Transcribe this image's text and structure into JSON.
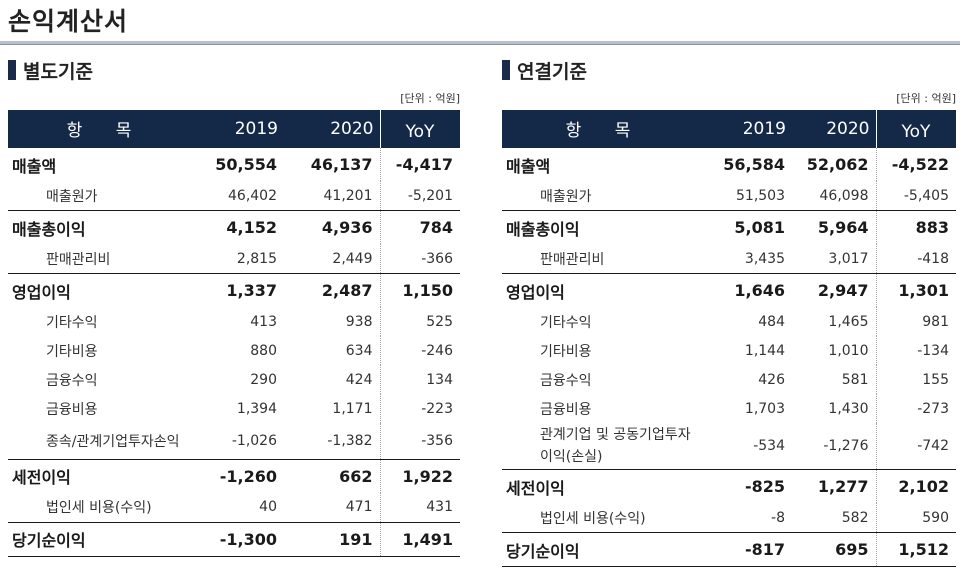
{
  "page": {
    "title": "손익계산서"
  },
  "headers": {
    "item": "항 목",
    "y2019": "2019",
    "y2020": "2020",
    "yoy": "YoY"
  },
  "unit": "[단위 : 억원]",
  "separate": {
    "title": "별도기준",
    "rows": [
      {
        "label": "매출액",
        "v2019": "50,554",
        "v2020": "46,137",
        "yoy": "-4,417"
      },
      {
        "label": "매출원가",
        "v2019": "46,402",
        "v2020": "41,201",
        "yoy": "-5,201"
      },
      {
        "label": "매출총이익",
        "v2019": "4,152",
        "v2020": "4,936",
        "yoy": "784"
      },
      {
        "label": "판매관리비",
        "v2019": "2,815",
        "v2020": "2,449",
        "yoy": "-366"
      },
      {
        "label": "영업이익",
        "v2019": "1,337",
        "v2020": "2,487",
        "yoy": "1,150"
      },
      {
        "label": "기타수익",
        "v2019": "413",
        "v2020": "938",
        "yoy": "525"
      },
      {
        "label": "기타비용",
        "v2019": "880",
        "v2020": "634",
        "yoy": "-246"
      },
      {
        "label": "금융수익",
        "v2019": "290",
        "v2020": "424",
        "yoy": "134"
      },
      {
        "label": "금융비용",
        "v2019": "1,394",
        "v2020": "1,171",
        "yoy": "-223"
      },
      {
        "label": "종속/관계기업투자손익",
        "v2019": "-1,026",
        "v2020": "-1,382",
        "yoy": "-356"
      },
      {
        "label": "세전이익",
        "v2019": "-1,260",
        "v2020": "662",
        "yoy": "1,922"
      },
      {
        "label": "법인세 비용(수익)",
        "v2019": "40",
        "v2020": "471",
        "yoy": "431"
      },
      {
        "label": "당기순이익",
        "v2019": "-1,300",
        "v2020": "191",
        "yoy": "1,491"
      }
    ]
  },
  "consolidated": {
    "title": "연결기준",
    "rows": [
      {
        "label": "매출액",
        "v2019": "56,584",
        "v2020": "52,062",
        "yoy": "-4,522"
      },
      {
        "label": "매출원가",
        "v2019": "51,503",
        "v2020": "46,098",
        "yoy": "-5,405"
      },
      {
        "label": "매출총이익",
        "v2019": "5,081",
        "v2020": "5,964",
        "yoy": "883"
      },
      {
        "label": "판매관리비",
        "v2019": "3,435",
        "v2020": "3,017",
        "yoy": "-418"
      },
      {
        "label": "영업이익",
        "v2019": "1,646",
        "v2020": "2,947",
        "yoy": "1,301"
      },
      {
        "label": "기타수익",
        "v2019": "484",
        "v2020": "1,465",
        "yoy": "981"
      },
      {
        "label": "기타비용",
        "v2019": "1,144",
        "v2020": "1,010",
        "yoy": "-134"
      },
      {
        "label": "금융수익",
        "v2019": "426",
        "v2020": "581",
        "yoy": "155"
      },
      {
        "label": "금융비용",
        "v2019": "1,703",
        "v2020": "1,430",
        "yoy": "-273"
      },
      {
        "label": "관계기업 및 공동기업투자 이익(손실)",
        "v2019": "-534",
        "v2020": "-1,276",
        "yoy": "-742"
      },
      {
        "label": "세전이익",
        "v2019": "-825",
        "v2020": "1,277",
        "yoy": "2,102"
      },
      {
        "label": "법인세 비용(수익)",
        "v2019": "-8",
        "v2020": "582",
        "yoy": "590"
      },
      {
        "label": "당기순이익",
        "v2019": "-817",
        "v2020": "695",
        "yoy": "1,512"
      }
    ]
  }
}
